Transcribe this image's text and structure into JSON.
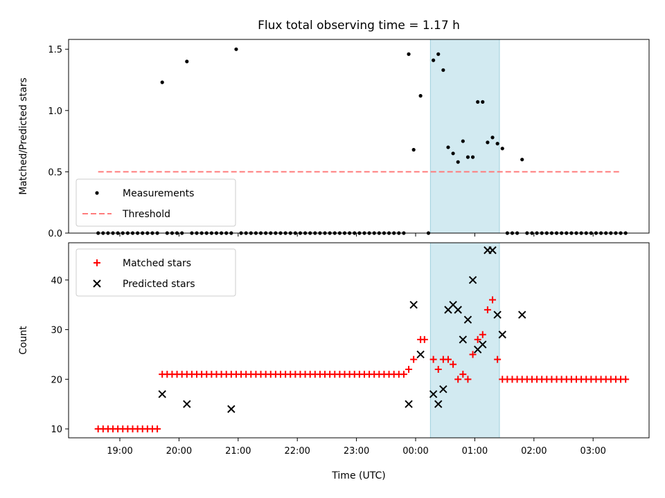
{
  "chart_data": {
    "title": "Flux total observing time = 1.17 h",
    "xlabel": "Time (UTC)",
    "x_ticks": [
      "19:00",
      "20:00",
      "21:00",
      "22:00",
      "23:00",
      "00:00",
      "01:00",
      "02:00",
      "03:00"
    ],
    "shaded_span": {
      "start": "00:15",
      "end": "01:25",
      "color": "#add8e6"
    },
    "panels": [
      {
        "type": "scatter",
        "ylabel": "Matched/Predicted stars",
        "ylim": [
          0,
          1.58
        ],
        "y_ticks": [
          "0.0",
          "0.5",
          "1.0",
          "1.5"
        ],
        "legend_location": "lower-left",
        "series": [
          {
            "name": "Measurements",
            "marker": "dot",
            "color": "#000000",
            "points": [
              [
                "18:38",
                0
              ],
              [
                "18:43",
                0
              ],
              [
                "18:48",
                0
              ],
              [
                "18:53",
                0
              ],
              [
                "18:58",
                0
              ],
              [
                "19:03",
                0
              ],
              [
                "19:08",
                0
              ],
              [
                "19:13",
                0
              ],
              [
                "19:18",
                0
              ],
              [
                "19:23",
                0
              ],
              [
                "19:28",
                0
              ],
              [
                "19:33",
                0
              ],
              [
                "19:38",
                0
              ],
              [
                "19:43",
                1.23
              ],
              [
                "19:48",
                0
              ],
              [
                "19:53",
                0
              ],
              [
                "19:58",
                0
              ],
              [
                "20:03",
                0
              ],
              [
                "20:08",
                1.4
              ],
              [
                "20:13",
                0
              ],
              [
                "20:18",
                0
              ],
              [
                "20:23",
                0
              ],
              [
                "20:28",
                0
              ],
              [
                "20:33",
                0
              ],
              [
                "20:38",
                0
              ],
              [
                "20:43",
                0
              ],
              [
                "20:48",
                0
              ],
              [
                "20:53",
                0
              ],
              [
                "20:58",
                1.5
              ],
              [
                "21:03",
                0
              ],
              [
                "21:08",
                0
              ],
              [
                "21:13",
                0
              ],
              [
                "21:18",
                0
              ],
              [
                "21:23",
                0
              ],
              [
                "21:28",
                0
              ],
              [
                "21:33",
                0
              ],
              [
                "21:38",
                0
              ],
              [
                "21:43",
                0
              ],
              [
                "21:48",
                0
              ],
              [
                "21:53",
                0
              ],
              [
                "21:58",
                0
              ],
              [
                "22:03",
                0
              ],
              [
                "22:08",
                0
              ],
              [
                "22:13",
                0
              ],
              [
                "22:18",
                0
              ],
              [
                "22:23",
                0
              ],
              [
                "22:28",
                0
              ],
              [
                "22:33",
                0
              ],
              [
                "22:38",
                0
              ],
              [
                "22:43",
                0
              ],
              [
                "22:48",
                0
              ],
              [
                "22:53",
                0
              ],
              [
                "22:58",
                0
              ],
              [
                "23:03",
                0
              ],
              [
                "23:08",
                0
              ],
              [
                "23:13",
                0
              ],
              [
                "23:18",
                0
              ],
              [
                "23:23",
                0
              ],
              [
                "23:28",
                0
              ],
              [
                "23:33",
                0
              ],
              [
                "23:38",
                0
              ],
              [
                "23:43",
                0
              ],
              [
                "23:48",
                0
              ],
              [
                "23:53",
                1.46
              ],
              [
                "23:58",
                0.68
              ],
              [
                "00:05",
                1.12
              ],
              [
                "00:13",
                0
              ],
              [
                "00:18",
                1.41
              ],
              [
                "00:23",
                1.46
              ],
              [
                "00:28",
                1.33
              ],
              [
                "00:33",
                0.7
              ],
              [
                "00:38",
                0.65
              ],
              [
                "00:43",
                0.58
              ],
              [
                "00:48",
                0.75
              ],
              [
                "00:53",
                0.62
              ],
              [
                "00:58",
                0.62
              ],
              [
                "01:03",
                1.07
              ],
              [
                "01:08",
                1.07
              ],
              [
                "01:13",
                0.74
              ],
              [
                "01:18",
                0.78
              ],
              [
                "01:23",
                0.73
              ],
              [
                "01:28",
                0.69
              ],
              [
                "01:33",
                0
              ],
              [
                "01:38",
                0
              ],
              [
                "01:43",
                0
              ],
              [
                "01:48",
                0.6
              ],
              [
                "01:53",
                0
              ],
              [
                "01:58",
                0
              ],
              [
                "02:03",
                0
              ],
              [
                "02:08",
                0
              ],
              [
                "02:13",
                0
              ],
              [
                "02:18",
                0
              ],
              [
                "02:23",
                0
              ],
              [
                "02:28",
                0
              ],
              [
                "02:33",
                0
              ],
              [
                "02:38",
                0
              ],
              [
                "02:43",
                0
              ],
              [
                "02:48",
                0
              ],
              [
                "02:53",
                0
              ],
              [
                "02:58",
                0
              ],
              [
                "03:03",
                0
              ],
              [
                "03:08",
                0
              ],
              [
                "03:13",
                0
              ],
              [
                "03:18",
                0
              ],
              [
                "03:23",
                0
              ],
              [
                "03:28",
                0
              ],
              [
                "03:33",
                0
              ]
            ]
          },
          {
            "name": "Threshold",
            "marker": "dashed-line",
            "color": "#ff7b7b",
            "points": [
              [
                "18:38",
                0.5
              ],
              [
                "03:28",
                0.5
              ]
            ]
          }
        ]
      },
      {
        "type": "scatter",
        "ylabel": "Count",
        "ylim": [
          8.2,
          47.5
        ],
        "y_ticks": [
          "10",
          "20",
          "30",
          "40"
        ],
        "legend_location": "upper-left",
        "series": [
          {
            "name": "Matched stars",
            "marker": "plus",
            "color": "#ff0000",
            "points": [
              [
                "18:38",
                10
              ],
              [
                "18:43",
                10
              ],
              [
                "18:48",
                10
              ],
              [
                "18:53",
                10
              ],
              [
                "18:58",
                10
              ],
              [
                "19:03",
                10
              ],
              [
                "19:08",
                10
              ],
              [
                "19:13",
                10
              ],
              [
                "19:18",
                10
              ],
              [
                "19:23",
                10
              ],
              [
                "19:28",
                10
              ],
              [
                "19:33",
                10
              ],
              [
                "19:38",
                10
              ],
              [
                "19:43",
                21
              ],
              [
                "19:48",
                21
              ],
              [
                "19:53",
                21
              ],
              [
                "19:58",
                21
              ],
              [
                "20:03",
                21
              ],
              [
                "20:08",
                21
              ],
              [
                "20:13",
                21
              ],
              [
                "20:18",
                21
              ],
              [
                "20:23",
                21
              ],
              [
                "20:28",
                21
              ],
              [
                "20:33",
                21
              ],
              [
                "20:38",
                21
              ],
              [
                "20:43",
                21
              ],
              [
                "20:48",
                21
              ],
              [
                "20:53",
                21
              ],
              [
                "20:58",
                21
              ],
              [
                "21:03",
                21
              ],
              [
                "21:08",
                21
              ],
              [
                "21:13",
                21
              ],
              [
                "21:18",
                21
              ],
              [
                "21:23",
                21
              ],
              [
                "21:28",
                21
              ],
              [
                "21:33",
                21
              ],
              [
                "21:38",
                21
              ],
              [
                "21:43",
                21
              ],
              [
                "21:48",
                21
              ],
              [
                "21:53",
                21
              ],
              [
                "21:58",
                21
              ],
              [
                "22:03",
                21
              ],
              [
                "22:08",
                21
              ],
              [
                "22:13",
                21
              ],
              [
                "22:18",
                21
              ],
              [
                "22:23",
                21
              ],
              [
                "22:28",
                21
              ],
              [
                "22:33",
                21
              ],
              [
                "22:38",
                21
              ],
              [
                "22:43",
                21
              ],
              [
                "22:48",
                21
              ],
              [
                "22:53",
                21
              ],
              [
                "22:58",
                21
              ],
              [
                "23:03",
                21
              ],
              [
                "23:08",
                21
              ],
              [
                "23:13",
                21
              ],
              [
                "23:18",
                21
              ],
              [
                "23:23",
                21
              ],
              [
                "23:28",
                21
              ],
              [
                "23:33",
                21
              ],
              [
                "23:38",
                21
              ],
              [
                "23:43",
                21
              ],
              [
                "23:48",
                21
              ],
              [
                "23:53",
                22
              ],
              [
                "23:58",
                24
              ],
              [
                "00:05",
                28
              ],
              [
                "00:09",
                28
              ],
              [
                "00:18",
                24
              ],
              [
                "00:23",
                22
              ],
              [
                "00:28",
                24
              ],
              [
                "00:33",
                24
              ],
              [
                "00:38",
                23
              ],
              [
                "00:43",
                20
              ],
              [
                "00:48",
                21
              ],
              [
                "00:53",
                20
              ],
              [
                "00:58",
                25
              ],
              [
                "01:03",
                28
              ],
              [
                "01:08",
                29
              ],
              [
                "01:13",
                34
              ],
              [
                "01:18",
                36
              ],
              [
                "01:23",
                24
              ],
              [
                "01:28",
                20
              ],
              [
                "01:33",
                20
              ],
              [
                "01:38",
                20
              ],
              [
                "01:43",
                20
              ],
              [
                "01:48",
                20
              ],
              [
                "01:53",
                20
              ],
              [
                "01:58",
                20
              ],
              [
                "02:03",
                20
              ],
              [
                "02:08",
                20
              ],
              [
                "02:13",
                20
              ],
              [
                "02:18",
                20
              ],
              [
                "02:23",
                20
              ],
              [
                "02:28",
                20
              ],
              [
                "02:33",
                20
              ],
              [
                "02:38",
                20
              ],
              [
                "02:43",
                20
              ],
              [
                "02:48",
                20
              ],
              [
                "02:53",
                20
              ],
              [
                "02:58",
                20
              ],
              [
                "03:03",
                20
              ],
              [
                "03:08",
                20
              ],
              [
                "03:13",
                20
              ],
              [
                "03:18",
                20
              ],
              [
                "03:23",
                20
              ],
              [
                "03:28",
                20
              ],
              [
                "03:33",
                20
              ]
            ]
          },
          {
            "name": "Predicted stars",
            "marker": "x",
            "color": "#000000",
            "points": [
              [
                "19:43",
                17
              ],
              [
                "20:08",
                15
              ],
              [
                "20:53",
                14
              ],
              [
                "23:53",
                15
              ],
              [
                "23:58",
                35
              ],
              [
                "00:05",
                25
              ],
              [
                "00:18",
                17
              ],
              [
                "00:23",
                15
              ],
              [
                "00:28",
                18
              ],
              [
                "00:33",
                34
              ],
              [
                "00:38",
                35
              ],
              [
                "00:43",
                34
              ],
              [
                "00:48",
                28
              ],
              [
                "00:53",
                32
              ],
              [
                "00:58",
                40
              ],
              [
                "01:03",
                26
              ],
              [
                "01:08",
                27
              ],
              [
                "01:13",
                46
              ],
              [
                "01:18",
                46
              ],
              [
                "01:23",
                33
              ],
              [
                "01:28",
                29
              ],
              [
                "01:48",
                33
              ]
            ]
          }
        ]
      }
    ]
  }
}
